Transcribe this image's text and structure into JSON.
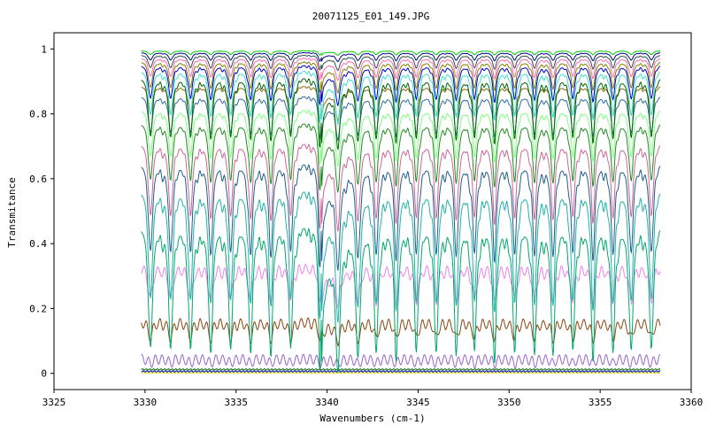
{
  "chart_data": {
    "type": "line",
    "title": "20071125_E01_149.JPG",
    "xlabel": "Wavenumbers (cm-1)",
    "ylabel": "Transmitance",
    "xlim": [
      3325,
      3360
    ],
    "ylim": [
      -0.05,
      1.05
    ],
    "x_ticks": [
      3325,
      3330,
      3335,
      3340,
      3345,
      3350,
      3355,
      3360
    ],
    "y_ticks": [
      0,
      0.2,
      0.4,
      0.6,
      0.8,
      1
    ],
    "y_tick_labels": [
      "0",
      "0.2",
      "0.4",
      "0.6",
      "0.8",
      "1"
    ],
    "x_range_data": [
      3329.8,
      3358.3
    ],
    "grid": false,
    "legend": "none",
    "absorption_lines": [
      3330.3,
      3331.4,
      3332.5,
      3333.6,
      3334.7,
      3335.8,
      3336.9,
      3338.0,
      3339.6,
      3340.6,
      3341.7,
      3342.7,
      3343.8,
      3344.9,
      3346.0,
      3347.1,
      3348.1,
      3349.2,
      3350.3,
      3351.4,
      3352.4,
      3353.5,
      3354.6,
      3355.7,
      3356.7,
      3357.8
    ],
    "series": [
      {
        "base": 0.002,
        "color": "#e6e600"
      },
      {
        "base": 0.006,
        "color": "#0000cc"
      },
      {
        "base": 0.012,
        "color": "#006600"
      },
      {
        "base": 0.045,
        "color": "#9966cc"
      },
      {
        "base": 0.16,
        "color": "#8b4513"
      },
      {
        "base": 0.33,
        "color": "#ee82ee"
      },
      {
        "base": 0.47,
        "color": "#00a86b"
      },
      {
        "base": 0.58,
        "color": "#20b2aa"
      },
      {
        "base": 0.66,
        "color": "#1f5f8b"
      },
      {
        "base": 0.72,
        "color": "#cc6699"
      },
      {
        "base": 0.78,
        "color": "#228b22"
      },
      {
        "base": 0.82,
        "color": "#7fff7f"
      },
      {
        "base": 0.86,
        "color": "#2e6da4"
      },
      {
        "base": 0.89,
        "color": "#8b6914"
      },
      {
        "base": 0.92,
        "color": "#006400"
      },
      {
        "base": 0.94,
        "color": "#40e0d0"
      },
      {
        "base": 0.955,
        "color": "#0000cd"
      },
      {
        "base": 0.965,
        "color": "#808000"
      },
      {
        "base": 0.975,
        "color": "#ff69b4"
      },
      {
        "base": 0.983,
        "color": "#2f4f4f"
      },
      {
        "base": 0.99,
        "color": "#00008b"
      },
      {
        "base": 0.995,
        "color": "#00cc00"
      }
    ]
  }
}
